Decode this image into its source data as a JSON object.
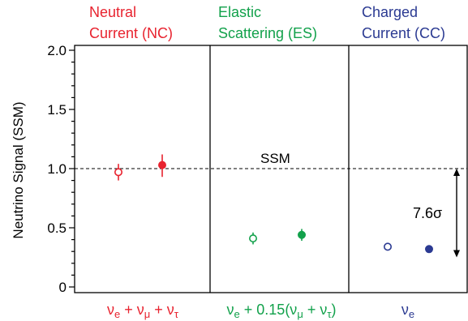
{
  "chart_data": {
    "type": "scatter",
    "ylabel": "Neutrino Signal  (SSM)",
    "ylim": [
      0,
      2.0
    ],
    "yticks": [
      "0",
      "0.5",
      "1.0",
      "1.5",
      "2.0"
    ],
    "yticks_values": [
      0,
      0.5,
      1.0,
      1.5,
      2.0
    ],
    "reference_line": {
      "label": "SSM",
      "y": 1.0
    },
    "annotation": {
      "label": "7.6σ",
      "from": 1.0,
      "to": 0.25
    },
    "panels": [
      {
        "title_line1": "Neutral",
        "title_line2": "Current  (NC)",
        "color": "#e8232f",
        "xlabel": {
          "p1": "ν",
          "s1": "e",
          "p2": " + ν",
          "s2": "μ",
          "p3": " + ν",
          "s3": "τ",
          "p4": ""
        },
        "points": [
          {
            "style": "open",
            "value": 0.97,
            "err_low": 0.07,
            "err_high": 0.07
          },
          {
            "style": "filled",
            "value": 1.03,
            "err_low": 0.1,
            "err_high": 0.09
          }
        ]
      },
      {
        "title_line1": "Elastic",
        "title_line2": "Scattering  (ES)",
        "color": "#12a14b",
        "xlabel": {
          "p1": "ν",
          "s1": "e",
          "p2": " + 0.15(ν",
          "s2": "μ",
          "p3": " + ν",
          "s3": "τ",
          "p4": ")"
        },
        "points": [
          {
            "style": "open",
            "value": 0.41,
            "err_low": 0.05,
            "err_high": 0.05
          },
          {
            "style": "filled",
            "value": 0.44,
            "err_low": 0.05,
            "err_high": 0.05
          }
        ]
      },
      {
        "title_line1": "Charged",
        "title_line2": "Current  (CC)",
        "color": "#2b3a92",
        "xlabel": {
          "p1": "ν",
          "s1": "e",
          "p2": "",
          "s2": "",
          "p3": "",
          "s3": "",
          "p4": ""
        },
        "points": [
          {
            "style": "open",
            "value": 0.34,
            "err_low": 0.0,
            "err_high": 0.0
          },
          {
            "style": "filled",
            "value": 0.32,
            "err_low": 0.0,
            "err_high": 0.0
          }
        ]
      }
    ]
  }
}
